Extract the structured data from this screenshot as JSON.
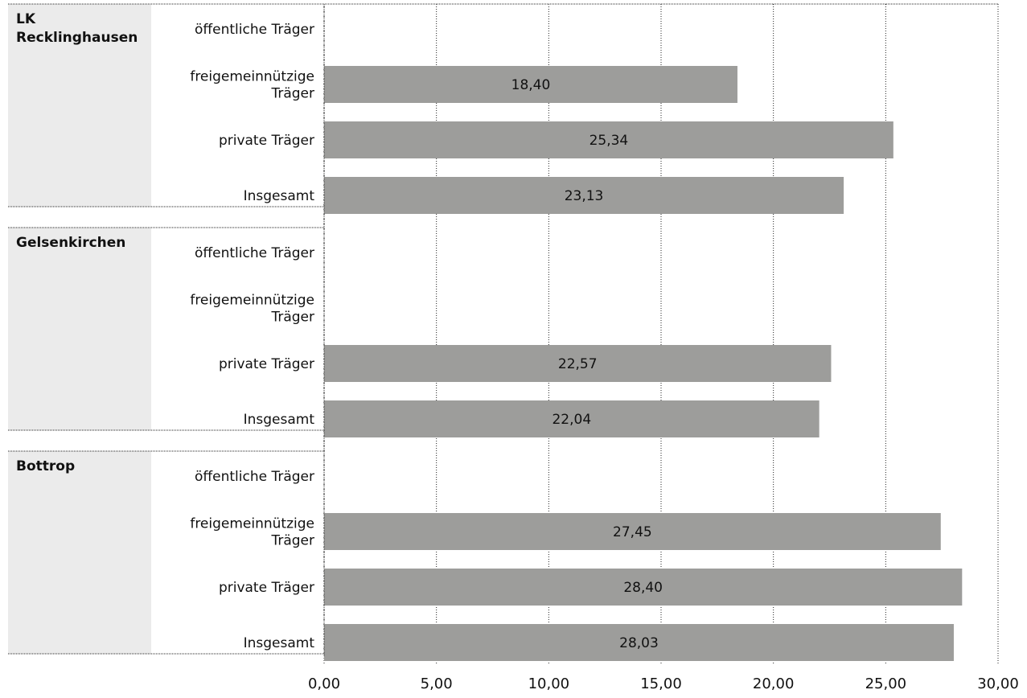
{
  "chart_data": {
    "type": "bar",
    "orientation": "horizontal",
    "xlim": [
      0,
      30
    ],
    "xticks": [
      0,
      5,
      10,
      15,
      20,
      25,
      30
    ],
    "xtick_labels": [
      "0,00",
      "5,00",
      "10,00",
      "15,00",
      "20,00",
      "25,00",
      "30,00"
    ],
    "grid": "vertical dotted",
    "bar_color": "#9d9d9b",
    "group_label_bg": "#ebebeb",
    "groups": [
      {
        "name": "LK Recklinghausen",
        "name_lines": [
          "LK",
          "Recklinghausen"
        ],
        "rows": [
          {
            "label_lines": [
              "öffentliche Träger"
            ],
            "value": null,
            "value_label": ""
          },
          {
            "label_lines": [
              "freigemeinnützige",
              "Träger"
            ],
            "value": 18.4,
            "value_label": "18,40"
          },
          {
            "label_lines": [
              "private Träger"
            ],
            "value": 25.34,
            "value_label": "25,34"
          },
          {
            "label_lines": [
              "Insgesamt"
            ],
            "value": 23.13,
            "value_label": "23,13"
          }
        ]
      },
      {
        "name": "Gelsenkirchen",
        "name_lines": [
          "Gelsenkirchen"
        ],
        "rows": [
          {
            "label_lines": [
              "öffentliche Träger"
            ],
            "value": null,
            "value_label": ""
          },
          {
            "label_lines": [
              "freigemeinnützige",
              "Träger"
            ],
            "value": null,
            "value_label": ""
          },
          {
            "label_lines": [
              "private Träger"
            ],
            "value": 22.57,
            "value_label": "22,57"
          },
          {
            "label_lines": [
              "Insgesamt"
            ],
            "value": 22.04,
            "value_label": "22,04"
          }
        ]
      },
      {
        "name": "Bottrop",
        "name_lines": [
          "Bottrop"
        ],
        "rows": [
          {
            "label_lines": [
              "öffentliche Träger"
            ],
            "value": null,
            "value_label": ""
          },
          {
            "label_lines": [
              "freigemeinnützige",
              "Träger"
            ],
            "value": 27.45,
            "value_label": "27,45"
          },
          {
            "label_lines": [
              "private Träger"
            ],
            "value": 28.4,
            "value_label": "28,40"
          },
          {
            "label_lines": [
              "Insgesamt"
            ],
            "value": 28.03,
            "value_label": "28,03"
          }
        ]
      }
    ]
  }
}
